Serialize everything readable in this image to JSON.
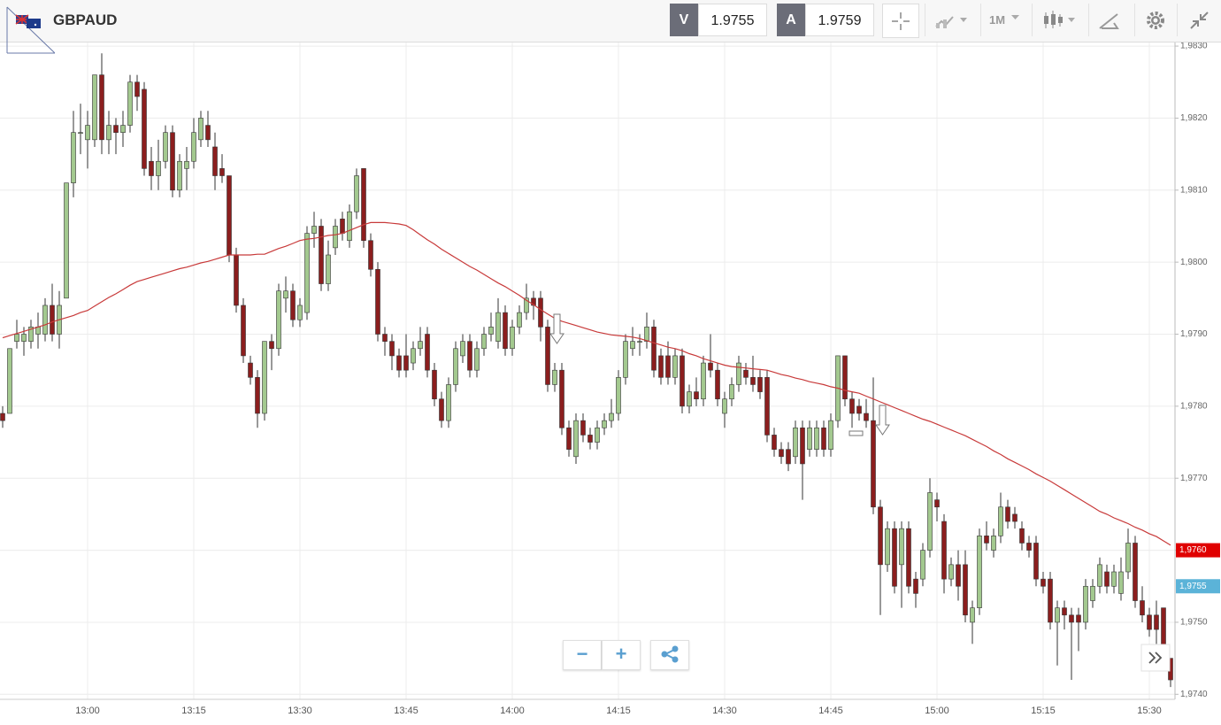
{
  "header": {
    "symbol": "GBPAUD",
    "bid_label": "V",
    "bid": "1.9755",
    "ask_label": "A",
    "ask": "1.9759",
    "timeframe": "1M"
  },
  "chart_data": {
    "type": "candlestick",
    "categories": [
      null,
      null,
      null,
      null,
      null,
      null,
      null,
      null,
      null,
      null,
      null,
      null,
      "13:00",
      null,
      null,
      null,
      null,
      null,
      null,
      null,
      null,
      null,
      null,
      null,
      null,
      null,
      null,
      "13:15",
      null,
      null,
      null,
      null,
      null,
      null,
      null,
      null,
      null,
      null,
      null,
      null,
      null,
      null,
      "13:30",
      null,
      null,
      null,
      null,
      null,
      null,
      null,
      null,
      null,
      null,
      null,
      null,
      null,
      null,
      "13:45",
      null,
      null,
      null,
      null,
      null,
      null,
      null,
      null,
      null,
      null,
      null,
      null,
      null,
      null,
      "14:00",
      null,
      null,
      null,
      null,
      null,
      null,
      null,
      null,
      null,
      null,
      null,
      null,
      null,
      null,
      "14:15",
      null,
      null,
      null,
      null,
      null,
      null,
      null,
      null,
      null,
      null,
      null,
      null,
      null,
      null,
      "14:30",
      null,
      null,
      null,
      null,
      null,
      null,
      null,
      null,
      null,
      null,
      null,
      null,
      null,
      null,
      "14:45",
      null,
      null,
      null,
      null,
      null,
      null,
      null,
      null,
      null,
      null,
      null,
      null,
      null,
      null,
      "15:00",
      null,
      null,
      null,
      null,
      null,
      null,
      null,
      null,
      null,
      null,
      null,
      null,
      null,
      null,
      "15:15",
      null,
      null,
      null,
      null,
      null,
      null,
      null,
      null,
      null,
      null,
      null,
      null,
      null,
      null,
      "15:30",
      null,
      null,
      null
    ],
    "open": [
      1.9779,
      1.9779,
      1.9789,
      1.9789,
      1.9789,
      1.979,
      1.979,
      1.9794,
      1.979,
      1.9795,
      1.9811,
      1.9818,
      1.9817,
      1.9817,
      1.9826,
      1.9817,
      1.9819,
      1.9818,
      1.9819,
      1.9825,
      1.9824,
      1.9814,
      1.9812,
      1.9814,
      1.9818,
      1.981,
      1.9813,
      1.9814,
      1.9817,
      1.9819,
      1.9816,
      1.9813,
      1.9812,
      1.9801,
      1.9794,
      1.9786,
      1.9784,
      1.9779,
      1.9789,
      1.9788,
      1.9795,
      1.9796,
      1.9792,
      1.9793,
      1.9804,
      1.9805,
      1.9797,
      1.9802,
      1.9806,
      1.9803,
      1.9807,
      1.9813,
      1.9803,
      1.9799,
      1.979,
      1.9789,
      1.9787,
      1.9787,
      1.9786,
      1.9788,
      1.979,
      1.9785,
      1.9781,
      1.9778,
      1.9783,
      1.9787,
      1.9789,
      1.9785,
      1.9788,
      1.979,
      1.9789,
      1.9793,
      1.9788,
      1.9791,
      1.9793,
      1.9795,
      1.9795,
      1.9791,
      1.9783,
      1.9785,
      1.9777,
      1.9773,
      1.9778,
      1.9776,
      1.9775,
      1.9777,
      1.9778,
      1.9779,
      1.9784,
      1.9788,
      1.9789,
      1.9789,
      1.9791,
      1.9787,
      1.9787,
      1.9784,
      1.9787,
      1.978,
      1.9782,
      1.9781,
      1.9786,
      1.9785,
      1.9779,
      1.9781,
      1.9783,
      1.9785,
      1.9784,
      1.9784,
      1.9784,
      1.9776,
      1.9774,
      1.9774,
      1.9773,
      1.9777,
      1.9774,
      1.9774,
      1.9777,
      1.9774,
      1.9778,
      1.9787,
      1.9781,
      1.978,
      1.9779,
      1.9778,
      1.9766,
      1.9758,
      1.9763,
      1.9758,
      1.9763,
      1.9756,
      1.9756,
      1.976,
      1.9767,
      1.9764,
      1.9756,
      1.9758,
      1.9758,
      1.975,
      1.9752,
      1.9762,
      1.976,
      1.9762,
      1.9766,
      1.9765,
      1.9763,
      1.9761,
      1.9761,
      1.9756,
      1.9756,
      1.975,
      1.9752,
      1.9751,
      1.9751,
      1.975,
      1.9753,
      1.9755,
      1.9757,
      1.9755,
      1.9754,
      1.9757,
      1.9761,
      1.9753,
      1.9751,
      1.9751,
      1.9752,
      1.9745
    ],
    "high": [
      1.978,
      1.9788,
      1.9792,
      1.9791,
      1.9792,
      1.9793,
      1.9795,
      1.9797,
      1.9796,
      1.9811,
      1.9821,
      1.9822,
      1.9821,
      1.9826,
      1.9829,
      1.9821,
      1.982,
      1.9821,
      1.9826,
      1.9826,
      1.9825,
      1.9816,
      1.9817,
      1.9819,
      1.9819,
      1.9815,
      1.9816,
      1.982,
      1.9821,
      1.9821,
      1.9818,
      1.9815,
      1.9812,
      1.9802,
      1.9795,
      1.9787,
      1.9785,
      1.9789,
      1.979,
      1.9797,
      1.9798,
      1.9797,
      1.9795,
      1.9805,
      1.9807,
      1.9806,
      1.9803,
      1.9806,
      1.9807,
      1.9808,
      1.9813,
      1.9813,
      1.9804,
      1.98,
      1.9791,
      1.979,
      1.9788,
      1.979,
      1.9789,
      1.9791,
      1.9791,
      1.9786,
      1.9782,
      1.9784,
      1.9789,
      1.979,
      1.979,
      1.9789,
      1.9791,
      1.9793,
      1.9795,
      1.9794,
      1.9792,
      1.9794,
      1.9797,
      1.9796,
      1.9796,
      1.9792,
      1.9786,
      1.9786,
      1.9778,
      1.9779,
      1.9779,
      1.9777,
      1.9778,
      1.9779,
      1.9781,
      1.9785,
      1.979,
      1.9791,
      1.979,
      1.9793,
      1.9792,
      1.9788,
      1.9789,
      1.9788,
      1.9788,
      1.9783,
      1.9784,
      1.9787,
      1.979,
      1.9786,
      1.9782,
      1.9784,
      1.9787,
      1.9786,
      1.9787,
      1.9785,
      1.9785,
      1.9777,
      1.9775,
      1.9775,
      1.9778,
      1.9778,
      1.9778,
      1.9778,
      1.9778,
      1.9779,
      1.9787,
      1.9787,
      1.9782,
      1.9781,
      1.9781,
      1.9784,
      1.9767,
      1.9764,
      1.9764,
      1.9764,
      1.9764,
      1.9757,
      1.9761,
      1.977,
      1.9768,
      1.9765,
      1.9759,
      1.976,
      1.976,
      1.9753,
      1.9763,
      1.9764,
      1.9763,
      1.9768,
      1.9767,
      1.9766,
      1.9764,
      1.9762,
      1.9762,
      1.9757,
      1.9757,
      1.9753,
      1.9753,
      1.9752,
      1.9752,
      1.9756,
      1.9756,
      1.9759,
      1.9758,
      1.9758,
      1.9759,
      1.9763,
      1.9762,
      1.9755,
      1.9752,
      1.9753,
      1.9752,
      1.9745
    ],
    "low": [
      1.9777,
      1.9779,
      1.9788,
      1.9787,
      1.9788,
      1.9788,
      1.9789,
      1.9789,
      1.9788,
      1.9795,
      1.9809,
      1.9815,
      1.9813,
      1.9816,
      1.9815,
      1.9815,
      1.9815,
      1.9816,
      1.9818,
      1.9821,
      1.9812,
      1.981,
      1.981,
      1.9813,
      1.9809,
      1.9809,
      1.981,
      1.9813,
      1.9816,
      1.9816,
      1.981,
      1.9811,
      1.98,
      1.9793,
      1.9786,
      1.9783,
      1.9777,
      1.9778,
      1.9785,
      1.9787,
      1.9793,
      1.9791,
      1.9791,
      1.9792,
      1.9802,
      1.9796,
      1.9796,
      1.9801,
      1.9803,
      1.9802,
      1.9806,
      1.9802,
      1.9798,
      1.9789,
      1.9787,
      1.9785,
      1.9784,
      1.9784,
      1.9785,
      1.9787,
      1.9784,
      1.978,
      1.9777,
      1.9777,
      1.9782,
      1.9786,
      1.9784,
      1.9784,
      1.9787,
      1.9789,
      1.9788,
      1.9787,
      1.9787,
      1.979,
      1.9792,
      1.9792,
      1.9789,
      1.9782,
      1.9782,
      1.9776,
      1.9773,
      1.9772,
      1.9775,
      1.9774,
      1.9774,
      1.9776,
      1.9777,
      1.9778,
      1.9783,
      1.9787,
      1.9787,
      1.9788,
      1.9784,
      1.9783,
      1.9783,
      1.9783,
      1.9779,
      1.9779,
      1.978,
      1.978,
      1.9784,
      1.978,
      1.9777,
      1.978,
      1.9782,
      1.9783,
      1.9782,
      1.9781,
      1.9775,
      1.9773,
      1.9772,
      1.9771,
      1.9772,
      1.9767,
      1.9773,
      1.9773,
      1.9773,
      1.9773,
      1.9777,
      1.978,
      1.9777,
      1.9778,
      1.9777,
      1.9765,
      1.9751,
      1.9757,
      1.9754,
      1.9752,
      1.9754,
      1.9752,
      1.9755,
      1.9759,
      1.9764,
      1.9754,
      1.9755,
      1.9753,
      1.975,
      1.9747,
      1.9751,
      1.976,
      1.9759,
      1.9761,
      1.9763,
      1.9763,
      1.976,
      1.9759,
      1.9755,
      1.9754,
      1.9749,
      1.9744,
      1.9749,
      1.9742,
      1.9746,
      1.9749,
      1.9752,
      1.9754,
      1.9754,
      1.9754,
      1.9753,
      1.9756,
      1.9752,
      1.975,
      1.9748,
      1.9747,
      1.9745,
      1.9741
    ],
    "close": [
      1.9778,
      1.9788,
      1.979,
      1.979,
      1.9791,
      1.9791,
      1.9794,
      1.979,
      1.9794,
      1.9811,
      1.9818,
      1.9818,
      1.9819,
      1.9826,
      1.9817,
      1.9819,
      1.9818,
      1.9819,
      1.9825,
      1.9823,
      1.9813,
      1.9812,
      1.9814,
      1.9818,
      1.981,
      1.9814,
      1.9814,
      1.9818,
      1.982,
      1.9817,
      1.9812,
      1.9812,
      1.9801,
      1.9794,
      1.9787,
      1.9784,
      1.9779,
      1.9789,
      1.9788,
      1.9796,
      1.9796,
      1.9792,
      1.9794,
      1.9804,
      1.9805,
      1.9797,
      1.9801,
      1.9805,
      1.9804,
      1.9807,
      1.9812,
      1.9803,
      1.9799,
      1.979,
      1.9789,
      1.9787,
      1.9785,
      1.9785,
      1.9788,
      1.9789,
      1.9785,
      1.9781,
      1.9778,
      1.9783,
      1.9788,
      1.9789,
      1.9785,
      1.9788,
      1.979,
      1.9791,
      1.9793,
      1.9788,
      1.9791,
      1.9793,
      1.9795,
      1.9794,
      1.9791,
      1.9783,
      1.9785,
      1.9777,
      1.9774,
      1.9778,
      1.9776,
      1.9775,
      1.9777,
      1.9778,
      1.9779,
      1.9784,
      1.9789,
      1.9789,
      1.9789,
      1.9791,
      1.9785,
      1.9784,
      1.9784,
      1.9787,
      1.978,
      1.9782,
      1.9781,
      1.9786,
      1.9785,
      1.9781,
      1.9781,
      1.9783,
      1.9786,
      1.9784,
      1.9783,
      1.9782,
      1.9776,
      1.9774,
      1.9773,
      1.9772,
      1.9777,
      1.9772,
      1.9777,
      1.9777,
      1.9774,
      1.9778,
      1.9787,
      1.9781,
      1.9779,
      1.9779,
      1.9778,
      1.9766,
      1.9758,
      1.9763,
      1.9755,
      1.9763,
      1.9755,
      1.9754,
      1.976,
      1.9768,
      1.9766,
      1.9756,
      1.9758,
      1.9755,
      1.9751,
      1.9752,
      1.9762,
      1.9761,
      1.9762,
      1.9766,
      1.9764,
      1.9764,
      1.9761,
      1.976,
      1.9756,
      1.9755,
      1.975,
      1.9752,
      1.9751,
      1.975,
      1.975,
      1.9755,
      1.9755,
      1.9758,
      1.9755,
      1.9757,
      1.9757,
      1.9761,
      1.9753,
      1.9751,
      1.9749,
      1.9749,
      1.9746,
      1.9742
    ],
    "up_color": "#a3c98f",
    "down_color": "#8b1e1e",
    "moving_average": {
      "color": "#c83a3a",
      "values": [
        1.97895,
        1.97898,
        1.97901,
        1.97904,
        1.97907,
        1.9791,
        1.97913,
        1.97917,
        1.9792,
        1.97923,
        1.97926,
        1.9793,
        1.97933,
        1.97939,
        1.97945,
        1.97951,
        1.97956,
        1.97962,
        1.97968,
        1.97973,
        1.97976,
        1.97979,
        1.97982,
        1.97985,
        1.97988,
        1.97991,
        1.97993,
        1.97996,
        1.97999,
        1.98001,
        1.98004,
        1.98007,
        1.9801,
        1.9801,
        1.9801,
        1.9801,
        1.98011,
        1.98011,
        1.98015,
        1.98019,
        1.98022,
        1.98026,
        1.9803,
        1.98032,
        1.98033,
        1.98035,
        1.98037,
        1.98038,
        1.9804,
        1.98044,
        1.98048,
        1.98052,
        1.98055,
        1.98055,
        1.98055,
        1.98054,
        1.98053,
        1.98051,
        1.98045,
        1.98038,
        1.98031,
        1.98025,
        1.98018,
        1.98012,
        1.98006,
        1.98,
        1.97994,
        1.97989,
        1.97983,
        1.97977,
        1.97971,
        1.97966,
        1.9796,
        1.97954,
        1.97947,
        1.97941,
        1.97934,
        1.97928,
        1.97922,
        1.97918,
        1.97915,
        1.97912,
        1.97909,
        1.97906,
        1.97903,
        1.97901,
        1.97899,
        1.97898,
        1.97897,
        1.97896,
        1.97894,
        1.97891,
        1.97888,
        1.97885,
        1.97882,
        1.9788,
        1.97877,
        1.97873,
        1.9787,
        1.97866,
        1.97863,
        1.9786,
        1.97857,
        1.97855,
        1.97854,
        1.97853,
        1.97852,
        1.97851,
        1.9785,
        1.97847,
        1.97844,
        1.97842,
        1.97839,
        1.97837,
        1.97834,
        1.97832,
        1.9783,
        1.97827,
        1.97825,
        1.97822,
        1.9782,
        1.97818,
        1.97814,
        1.9781,
        1.97806,
        1.97802,
        1.97798,
        1.97794,
        1.9779,
        1.97786,
        1.97782,
        1.97779,
        1.97775,
        1.97771,
        1.97767,
        1.97763,
        1.97759,
        1.97754,
        1.97749,
        1.97744,
        1.97738,
        1.97733,
        1.97727,
        1.97722,
        1.97717,
        1.97712,
        1.97706,
        1.97701,
        1.97696,
        1.9769,
        1.97684,
        1.97678,
        1.97672,
        1.97666,
        1.9766,
        1.97654,
        1.9765,
        1.97645,
        1.97641,
        1.97637,
        1.97632,
        1.97628,
        1.97623,
        1.97619,
        1.97613,
        1.97607
      ]
    },
    "ylim": [
      1.97393,
      1.98305
    ],
    "yticks": [
      {
        "value": 1.974,
        "label": "1,9740"
      },
      {
        "value": 1.975,
        "label": "1,9750"
      },
      {
        "value": 1.976,
        "label": "1,9760"
      },
      {
        "value": 1.977,
        "label": "1,9770"
      },
      {
        "value": 1.978,
        "label": "1,9780"
      },
      {
        "value": 1.979,
        "label": "1,9790"
      },
      {
        "value": 1.98,
        "label": "1,9800"
      },
      {
        "value": 1.981,
        "label": "1,9810"
      },
      {
        "value": 1.982,
        "label": "1,9820"
      },
      {
        "value": 1.983,
        "label": "1,9830"
      }
    ],
    "grid": true,
    "price_markers": [
      {
        "value": 1.976,
        "label": "1,9760",
        "color": "#e00000"
      },
      {
        "value": 1.9755,
        "label": "1,9755",
        "color": "#5bb3d8"
      }
    ]
  }
}
